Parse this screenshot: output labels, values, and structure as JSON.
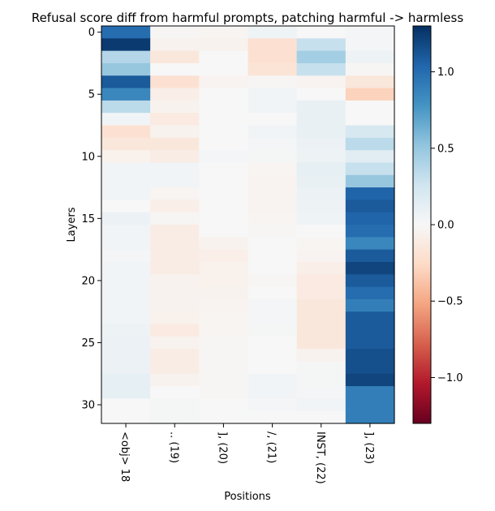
{
  "chart_data": {
    "type": "heatmap",
    "title": "Refusal score diff from harmful prompts, patching harmful -> harmless",
    "xlabel": "Positions",
    "ylabel": "Layers",
    "x_categories": [
      "<obj> 18",
      ".. (19)",
      "], (20)",
      "/, (21)",
      "INST, (22)",
      "], (23)"
    ],
    "y_ticks": [
      0,
      5,
      10,
      15,
      20,
      25,
      30
    ],
    "n_layers": 32,
    "colorbar": {
      "colormap": "RdBu",
      "vmin": -1.3,
      "vmax": 1.3,
      "ticks": [
        -1.0,
        -0.5,
        0.0,
        0.5,
        1.0
      ],
      "tick_labels": [
        "−1.0",
        "−0.5",
        "0.0",
        "0.5",
        "1.0"
      ]
    },
    "grid": false,
    "values": [
      [
        1.0,
        -0.02,
        -0.03,
        0.06,
        0.0,
        0.03
      ],
      [
        1.25,
        -0.05,
        -0.05,
        -0.2,
        0.3,
        0.03
      ],
      [
        0.38,
        -0.15,
        0.0,
        -0.2,
        0.45,
        0.07
      ],
      [
        0.5,
        0.0,
        0.0,
        -0.18,
        0.3,
        -0.02
      ],
      [
        1.1,
        -0.2,
        -0.04,
        -0.02,
        -0.04,
        -0.15
      ],
      [
        0.85,
        -0.08,
        0.0,
        0.05,
        0.0,
        -0.3
      ],
      [
        0.35,
        -0.05,
        0.0,
        0.05,
        0.1,
        0.0
      ],
      [
        0.04,
        -0.12,
        0.0,
        0.0,
        0.1,
        0.0
      ],
      [
        -0.2,
        -0.05,
        0.0,
        0.05,
        0.1,
        0.22
      ],
      [
        -0.15,
        -0.15,
        0.0,
        0.03,
        0.08,
        0.35
      ],
      [
        -0.06,
        -0.1,
        0.03,
        0.02,
        0.07,
        0.15
      ],
      [
        0.05,
        0.05,
        0.0,
        -0.03,
        0.12,
        0.3
      ],
      [
        0.05,
        0.05,
        0.0,
        -0.04,
        0.1,
        0.5
      ],
      [
        0.05,
        -0.03,
        0.0,
        -0.04,
        0.08,
        1.05
      ],
      [
        0.0,
        -0.08,
        0.0,
        -0.04,
        0.07,
        1.1
      ],
      [
        0.08,
        -0.02,
        0.0,
        -0.03,
        0.06,
        1.05
      ],
      [
        0.05,
        -0.1,
        0.0,
        -0.02,
        0.0,
        1.0
      ],
      [
        0.05,
        -0.1,
        -0.05,
        0.0,
        -0.03,
        0.85
      ],
      [
        0.03,
        -0.1,
        -0.08,
        0.0,
        -0.04,
        1.1
      ],
      [
        0.04,
        -0.1,
        -0.06,
        0.0,
        -0.08,
        1.2
      ],
      [
        0.05,
        -0.05,
        -0.06,
        -0.02,
        -0.12,
        1.1
      ],
      [
        0.05,
        -0.05,
        -0.05,
        0.0,
        -0.12,
        1.0
      ],
      [
        0.05,
        -0.05,
        -0.04,
        0.03,
        -0.15,
        0.9
      ],
      [
        0.05,
        -0.06,
        -0.03,
        0.03,
        -0.15,
        1.1
      ],
      [
        0.07,
        -0.12,
        -0.03,
        0.02,
        -0.15,
        1.1
      ],
      [
        0.08,
        -0.05,
        -0.02,
        0.0,
        -0.15,
        1.1
      ],
      [
        0.08,
        -0.1,
        -0.02,
        0.0,
        -0.05,
        1.15
      ],
      [
        0.08,
        -0.1,
        -0.02,
        0.0,
        0.02,
        1.15
      ],
      [
        0.12,
        -0.05,
        -0.02,
        0.04,
        0.02,
        1.2
      ],
      [
        0.12,
        0.0,
        -0.02,
        0.04,
        0.03,
        0.9
      ],
      [
        0.0,
        0.02,
        0.0,
        0.03,
        0.05,
        0.9
      ],
      [
        0.0,
        0.02,
        0.0,
        0.0,
        0.0,
        0.9
      ]
    ]
  }
}
